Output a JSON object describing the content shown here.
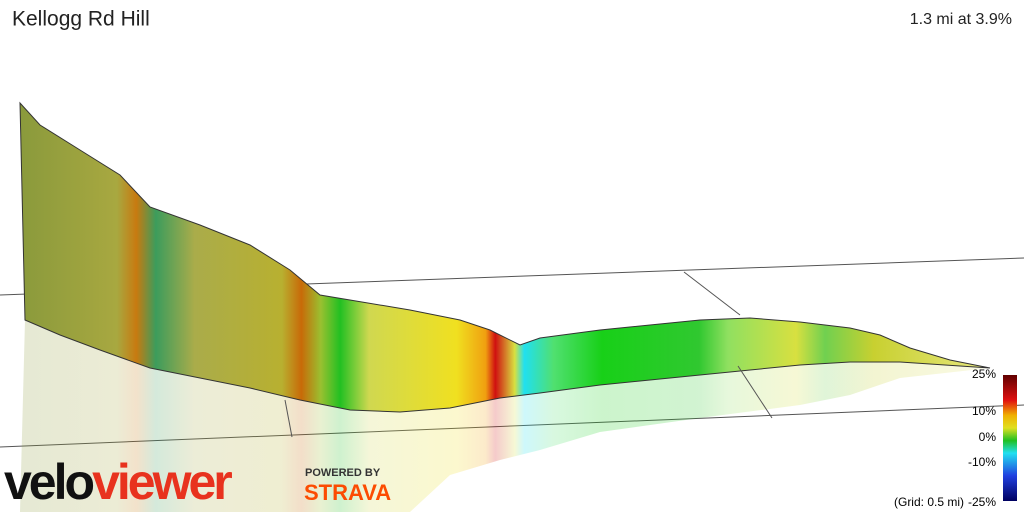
{
  "header": {
    "title": "Kellogg Rd Hill",
    "summary": "1.3 mi at 3.9%"
  },
  "legend": {
    "labels": [
      "25%",
      "10%",
      "0%",
      "-10%",
      "-25%"
    ],
    "grid_note": "(Grid: 0.5 mi)"
  },
  "branding": {
    "logo_left": "velo",
    "logo_right": "viewer",
    "powered_by": "POWERED BY",
    "partner": "STRAVA"
  }
}
